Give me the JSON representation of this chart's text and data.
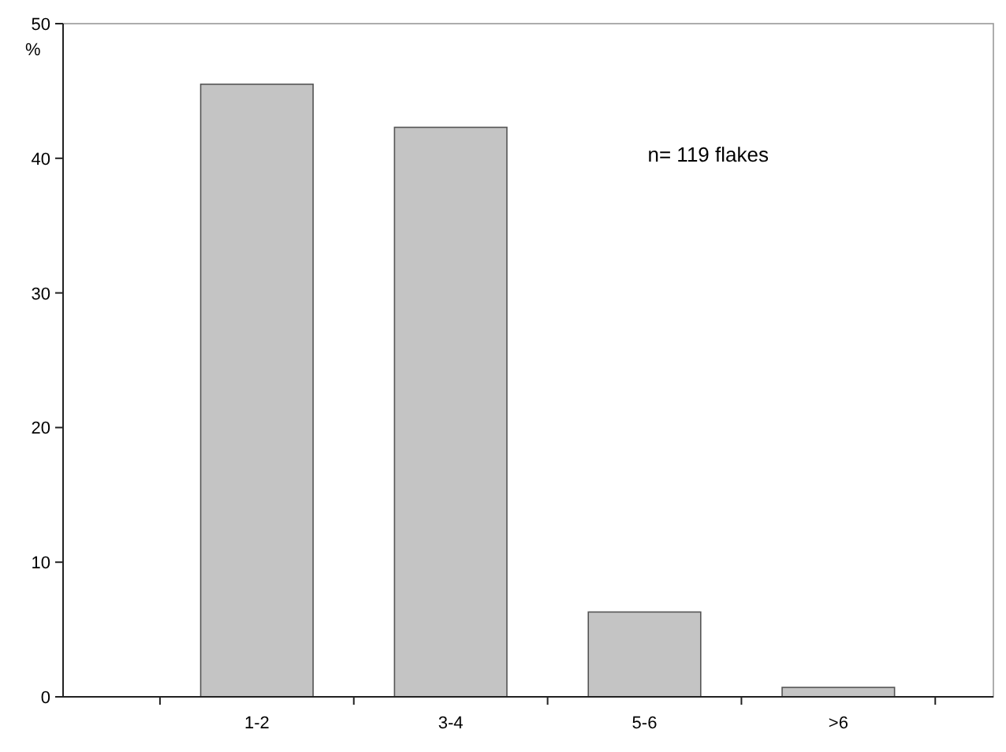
{
  "chart_data": {
    "type": "bar",
    "ylabel": "%",
    "categories": [
      "1-2",
      "3-4",
      "5-6",
      ">6"
    ],
    "values": [
      45.5,
      42.3,
      6.3,
      0.7
    ],
    "color": "#c4c4c4",
    "ylim": [
      0,
      50
    ],
    "yticks": [
      0,
      10,
      20,
      30,
      40,
      50
    ],
    "annotations": [
      "n= 119 flakes"
    ],
    "grid": false
  }
}
